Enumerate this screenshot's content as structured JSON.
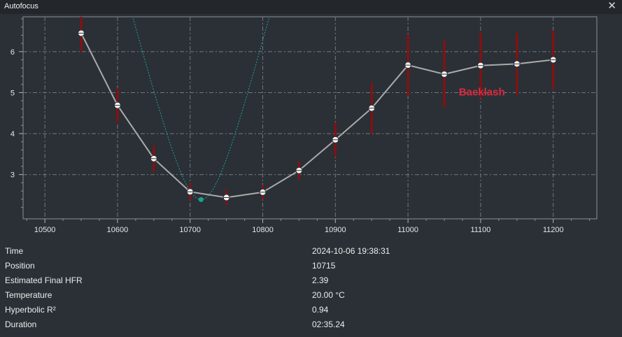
{
  "window": {
    "title": "Autofocus",
    "close_glyph": "✕"
  },
  "chart_data": {
    "type": "line",
    "x_ticks": [
      10500,
      10600,
      10700,
      10800,
      10900,
      11000,
      11100,
      11200
    ],
    "y_ticks": [
      3,
      4,
      5,
      6
    ],
    "xlim": [
      10470,
      11260
    ],
    "ylim": [
      1.92,
      6.85
    ],
    "grid": true,
    "series": [
      {
        "type": "line-with-errorbars",
        "points": [
          {
            "x": 10550,
            "y": 6.45,
            "err": 0.45
          },
          {
            "x": 10600,
            "y": 4.69,
            "err": 0.42
          },
          {
            "x": 10650,
            "y": 3.39,
            "err": 0.32
          },
          {
            "x": 10700,
            "y": 2.58,
            "err": 0.2
          },
          {
            "x": 10750,
            "y": 2.44,
            "err": 0.18
          },
          {
            "x": 10800,
            "y": 2.57,
            "err": 0.18
          },
          {
            "x": 10850,
            "y": 3.1,
            "err": 0.22
          },
          {
            "x": 10900,
            "y": 3.85,
            "err": 0.42
          },
          {
            "x": 10950,
            "y": 4.62,
            "err": 0.62
          },
          {
            "x": 11000,
            "y": 5.67,
            "err": 0.75
          },
          {
            "x": 11050,
            "y": 5.45,
            "err": 0.82
          },
          {
            "x": 11100,
            "y": 5.66,
            "err": 0.8
          },
          {
            "x": 11150,
            "y": 5.7,
            "err": 0.75
          },
          {
            "x": 11200,
            "y": 5.8,
            "err": 0.72
          }
        ],
        "line_color": "#aaaaaa",
        "error_color": "#8b0f0f"
      },
      {
        "type": "hyperbolic-fit",
        "minimum": {
          "x": 10715,
          "y": 2.39
        },
        "a": 2.39,
        "b": 35,
        "color": "#1aa391"
      }
    ],
    "annotations": [
      {
        "text": "Backlash",
        "x": 11070,
        "y": 4.93,
        "color": "#e0283c"
      }
    ]
  },
  "info": {
    "rows": [
      {
        "label": "Time",
        "value": "2024-10-06 19:38:31"
      },
      {
        "label": "Position",
        "value": "10715"
      },
      {
        "label": "Estimated Final HFR",
        "value": "2.39"
      },
      {
        "label": "Temperature",
        "value": "20.00 °C"
      },
      {
        "label": "Hyperbolic R²",
        "value": "0.94"
      },
      {
        "label": "Duration",
        "value": "02:35.24"
      }
    ]
  }
}
